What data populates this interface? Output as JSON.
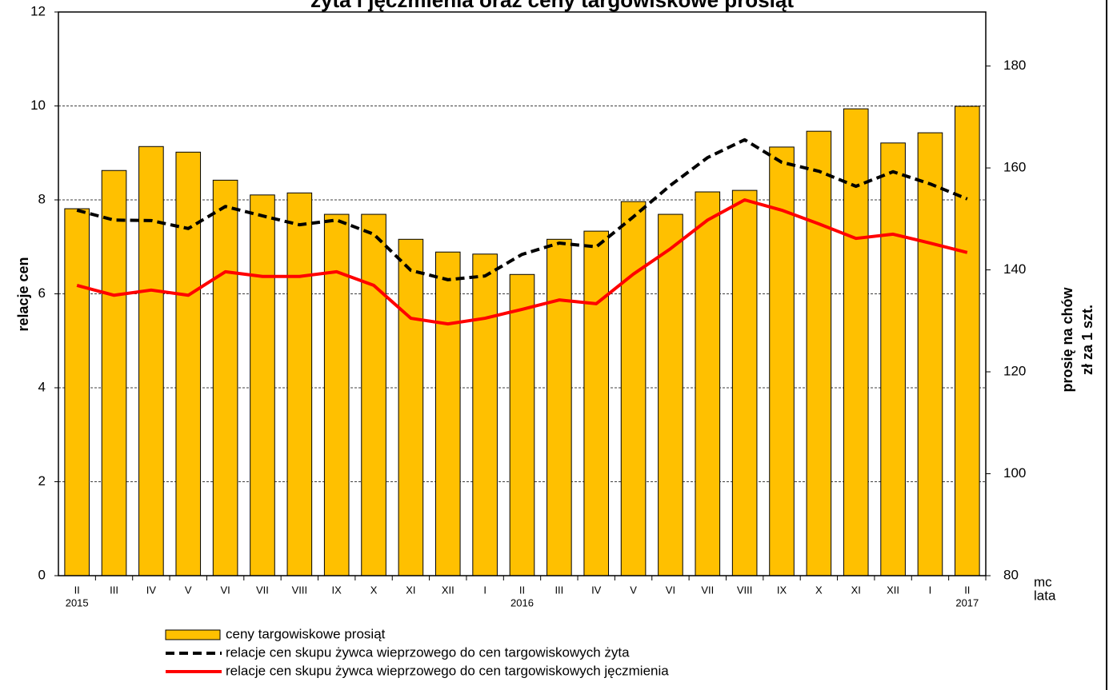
{
  "chart_data": {
    "type": "bar_line",
    "title": "żyta i jęczmienia oraz ceny targowiskowe prosiąt",
    "ylabel": "relacje cen",
    "y2label": [
      "prosię na chów",
      "zł za 1 szt."
    ],
    "xlabel": [
      "mc",
      "lata"
    ],
    "categories": [
      "II",
      "III",
      "IV",
      "V",
      "VI",
      "VII",
      "VIII",
      "IX",
      "X",
      "XI",
      "XII",
      "I",
      "II",
      "III",
      "IV",
      "V",
      "VI",
      "VII",
      "VIII",
      "IX",
      "X",
      "XI",
      "XII",
      "I",
      "II"
    ],
    "year_labels": [
      "2015",
      null,
      null,
      null,
      null,
      null,
      null,
      null,
      null,
      null,
      null,
      null,
      "2016",
      null,
      null,
      null,
      null,
      null,
      null,
      null,
      null,
      null,
      null,
      null,
      "2017"
    ],
    "ylim": [
      0,
      12
    ],
    "yticks": [
      0,
      2,
      4,
      6,
      8,
      10,
      12
    ],
    "y2lim": [
      80,
      190.6
    ],
    "y2ticks": [
      80,
      100,
      120,
      140,
      160,
      180
    ],
    "grid": true,
    "series": [
      {
        "name": "ceny targowiskowe prosiąt",
        "type": "bar",
        "axis": "y2",
        "color": "#FFC000",
        "values": [
          152.0,
          159.5,
          164.2,
          163.1,
          157.6,
          154.7,
          155.1,
          150.9,
          150.9,
          146.0,
          143.5,
          143.1,
          139.1,
          146.0,
          147.6,
          153.4,
          150.9,
          155.3,
          155.6,
          164.1,
          167.2,
          171.6,
          164.9,
          166.9,
          172.1
        ]
      },
      {
        "name": "relacje cen skupu żywca wieprzowego do cen targowiskowych żyta",
        "type": "line",
        "dashed": true,
        "color": "#000000",
        "values": [
          7.78,
          7.57,
          7.56,
          7.39,
          7.86,
          7.66,
          7.47,
          7.57,
          7.27,
          6.5,
          6.3,
          6.38,
          6.84,
          7.08,
          7.0,
          7.64,
          8.31,
          8.9,
          9.28,
          8.8,
          8.61,
          8.29,
          8.6,
          8.34,
          8.02
        ]
      },
      {
        "name": "relacje cen skupu żywca wieprzowego do cen targowiskowych jęczmienia",
        "type": "line",
        "dashed": false,
        "color": "#FF0000",
        "values": [
          6.18,
          5.97,
          6.08,
          5.97,
          6.47,
          6.37,
          6.37,
          6.47,
          6.18,
          5.48,
          5.36,
          5.48,
          5.67,
          5.87,
          5.79,
          6.42,
          6.96,
          7.57,
          8.0,
          7.78,
          7.49,
          7.18,
          7.27,
          7.08,
          6.88
        ]
      }
    ]
  }
}
